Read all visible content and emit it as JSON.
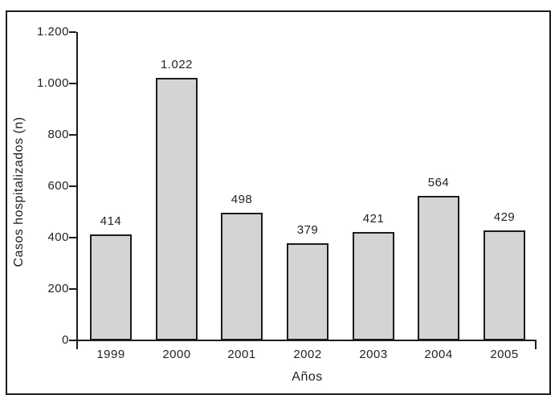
{
  "chart_data": {
    "type": "bar",
    "title": "",
    "categories": [
      "1999",
      "2000",
      "2001",
      "2002",
      "2003",
      "2004",
      "2005"
    ],
    "values": [
      414,
      1022,
      498,
      379,
      421,
      564,
      429
    ],
    "bar_value_labels": [
      "414",
      "1.022",
      "498",
      "379",
      "421",
      "564",
      "429"
    ],
    "xlabel": "Años",
    "ylabel": "Casos hospitalizados (n)",
    "ylim": [
      0,
      1200
    ],
    "yticks": [
      0,
      200,
      400,
      600,
      800,
      1000,
      1200
    ],
    "ytick_labels": [
      "0",
      "200",
      "400",
      "600",
      "800",
      "1.000",
      "1.200"
    ],
    "grid": false,
    "legend": "none",
    "bar_fill_color": "#d4d4d4",
    "bar_border_color": "#1c1c1c",
    "axis_color": "#1c1c1c",
    "text_color": "#222222"
  }
}
